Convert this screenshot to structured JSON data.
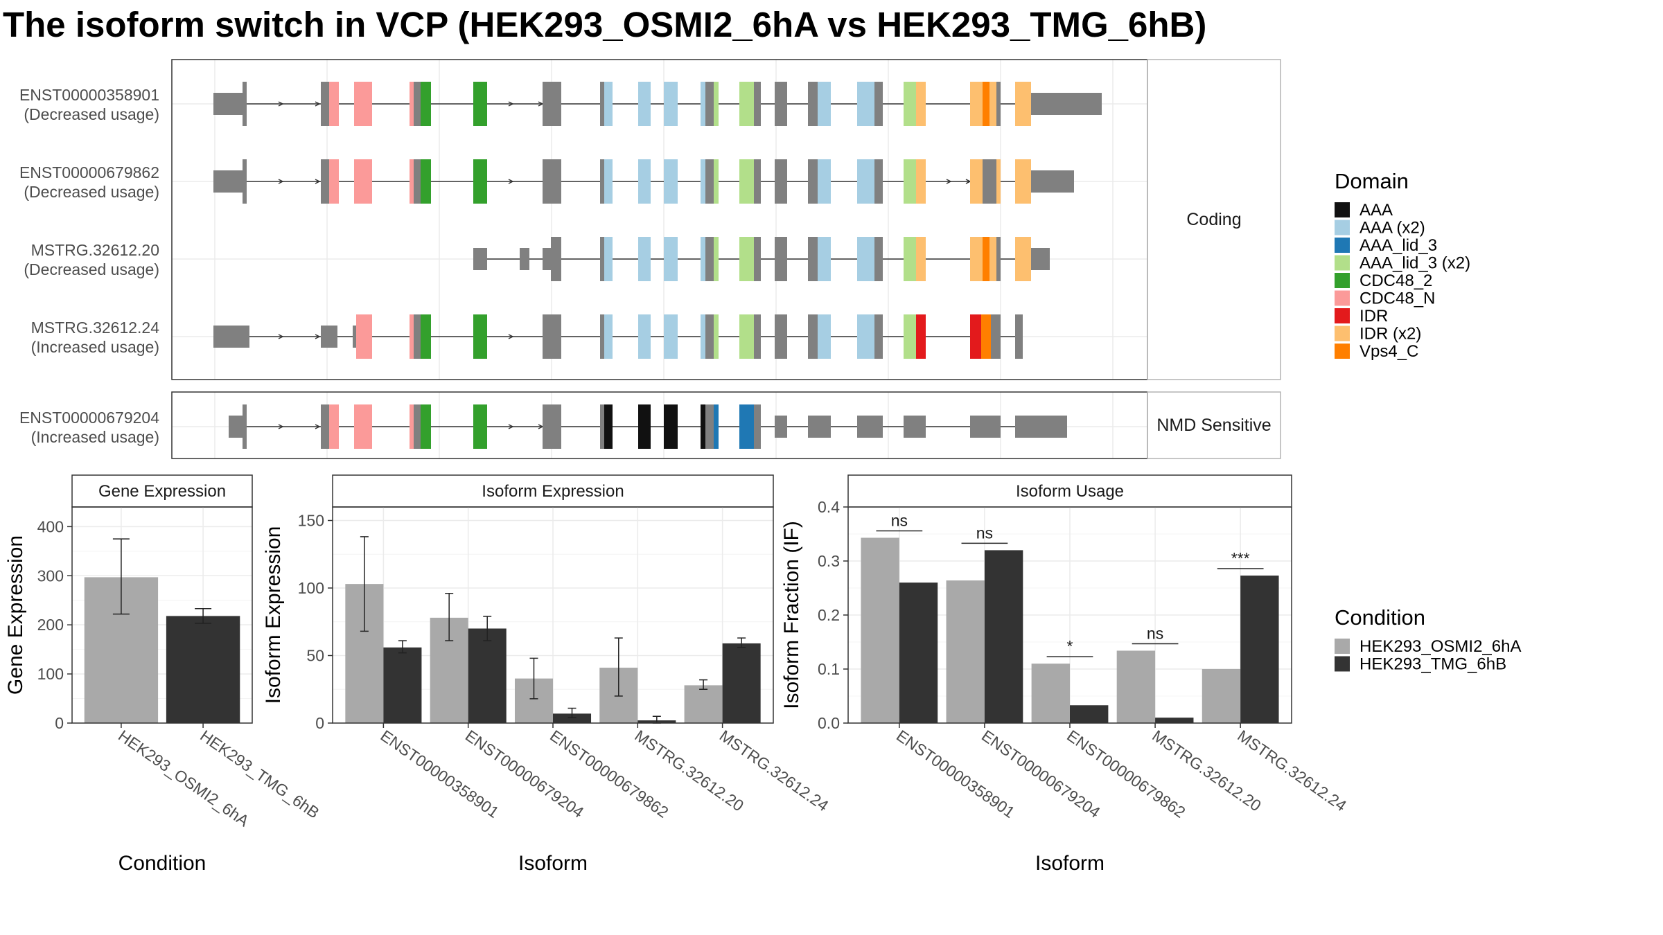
{
  "title": "The isoform switch in VCP (HEK293_OSMI2_6hA vs HEK293_TMG_6hB)",
  "colors": {
    "intron_exon": "#808080",
    "condition_a": "#a9a9a9",
    "condition_b": "#333333"
  },
  "structure": {
    "facets": [
      {
        "label": "Coding",
        "rows": [
          {
            "id": "ENST00000358901",
            "usage": "(Decreased usage)"
          },
          {
            "id": "ENST00000679862",
            "usage": "(Decreased usage)"
          },
          {
            "id": "MSTRG.32612.20",
            "usage": "(Decreased usage)"
          },
          {
            "id": "MSTRG.32612.24",
            "usage": "(Increased usage)"
          }
        ]
      },
      {
        "label": "NMD Sensitive",
        "rows": [
          {
            "id": "ENST00000679204",
            "usage": "(Increased usage)"
          }
        ]
      }
    ]
  },
  "domain_legend": {
    "title": "Domain",
    "items": [
      {
        "label": "AAA",
        "color": "#111111"
      },
      {
        "label": "AAA (x2)",
        "color": "#a6cee3"
      },
      {
        "label": "AAA_lid_3",
        "color": "#1f78b4"
      },
      {
        "label": "AAA_lid_3 (x2)",
        "color": "#b2df8a"
      },
      {
        "label": "CDC48_2",
        "color": "#33a02c"
      },
      {
        "label": "CDC48_N",
        "color": "#fb9a99"
      },
      {
        "label": "IDR",
        "color": "#e31a1c"
      },
      {
        "label": "IDR (x2)",
        "color": "#fdbf6f"
      },
      {
        "label": "Vps4_C",
        "color": "#ff7f00"
      }
    ]
  },
  "condition_legend": {
    "title": "Condition",
    "items": [
      {
        "label": "HEK293_OSMI2_6hA",
        "color": "#a9a9a9"
      },
      {
        "label": "HEK293_TMG_6hB",
        "color": "#333333"
      }
    ]
  },
  "chart_data": [
    {
      "type": "bar",
      "title": "Gene Expression",
      "xlabel": "Condition",
      "ylabel": "Gene Expression",
      "ylim": [
        0,
        440
      ],
      "yticks": [
        0,
        100,
        200,
        300,
        400
      ],
      "categories": [
        "HEK293_OSMI2_6hA",
        "HEK293_TMG_6hB"
      ],
      "values": [
        297,
        218
      ],
      "error_low": [
        222,
        203
      ],
      "error_high": [
        375,
        233
      ]
    },
    {
      "type": "bar",
      "title": "Isoform Expression",
      "xlabel": "Isoform",
      "ylabel": "Isoform Expression",
      "ylim": [
        0,
        160
      ],
      "yticks": [
        0,
        50,
        100,
        150
      ],
      "categories": [
        "ENST00000358901",
        "ENST00000679204",
        "ENST00000679862",
        "MSTRG.32612.20",
        "MSTRG.32612.24"
      ],
      "series": [
        {
          "name": "HEK293_OSMI2_6hA",
          "values": [
            103,
            78,
            33,
            41,
            28
          ],
          "error_low": [
            68,
            61,
            18,
            20,
            25
          ],
          "error_high": [
            138,
            96,
            48,
            63,
            32
          ]
        },
        {
          "name": "HEK293_TMG_6hB",
          "values": [
            56,
            70,
            7,
            2,
            59
          ],
          "error_low": [
            52,
            61,
            4,
            0,
            56
          ],
          "error_high": [
            61,
            79,
            11,
            5,
            63
          ]
        }
      ]
    },
    {
      "type": "bar",
      "title": "Isoform Usage",
      "xlabel": "Isoform",
      "ylabel": "Isoform Fraction (IF)",
      "ylim": [
        0,
        0.4
      ],
      "yticks": [
        "0.0",
        "0.1",
        "0.2",
        "0.3",
        "0.4"
      ],
      "categories": [
        "ENST00000358901",
        "ENST00000679204",
        "ENST00000679862",
        "MSTRG.32612.20",
        "MSTRG.32612.24"
      ],
      "series": [
        {
          "name": "HEK293_OSMI2_6hA",
          "values": [
            0.343,
            0.264,
            0.11,
            0.134,
            0.1
          ]
        },
        {
          "name": "HEK293_TMG_6hB",
          "values": [
            0.26,
            0.32,
            0.033,
            0.01,
            0.273
          ]
        }
      ],
      "significance": [
        "ns",
        "ns",
        "*",
        "ns",
        "***"
      ]
    }
  ]
}
